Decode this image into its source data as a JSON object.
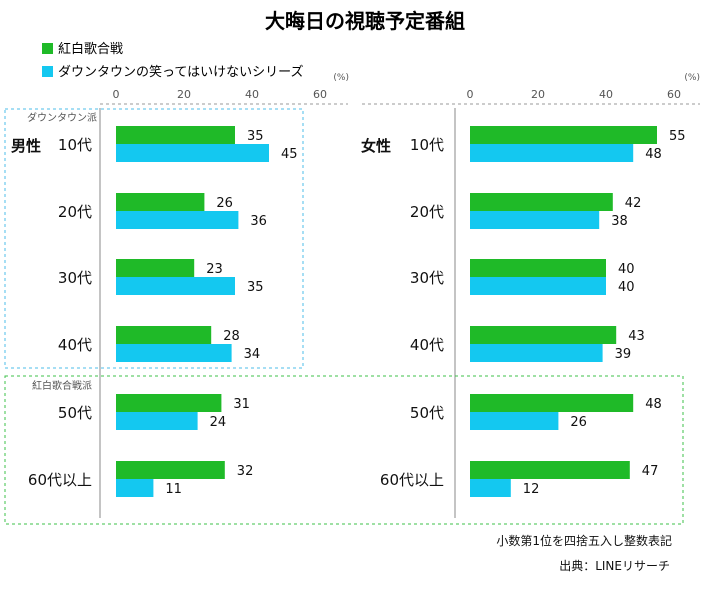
{
  "title": "大晦日の視聴予定番組",
  "colors": {
    "kohaku": "#1fba28",
    "downtown": "#14c8f0",
    "box_blue": "#4cbde8",
    "box_green": "#3ec14a"
  },
  "footnote": "小数第1位を四捨五入し整数表記",
  "source": "出典：LINEリサーチ",
  "chart_data": [
    {
      "type": "bar",
      "orientation": "horizontal",
      "panel_label": "男性",
      "unit": "(%)",
      "xlim": [
        0,
        60
      ],
      "ticks": [
        0,
        20,
        40,
        60
      ],
      "categories": [
        "10代",
        "20代",
        "30代",
        "40代",
        "50代",
        "60代以上"
      ],
      "series": [
        {
          "name": "紅白歌合戦",
          "values": [
            35,
            26,
            23,
            28,
            31,
            32
          ]
        },
        {
          "name": "ダウンタウンの笑ってはいけないシリーズ",
          "values": [
            45,
            36,
            35,
            34,
            24,
            11
          ]
        }
      ]
    },
    {
      "type": "bar",
      "orientation": "horizontal",
      "panel_label": "女性",
      "unit": "(%)",
      "xlim": [
        0,
        60
      ],
      "ticks": [
        0,
        20,
        40,
        60
      ],
      "categories": [
        "10代",
        "20代",
        "30代",
        "40代",
        "50代",
        "60代以上"
      ],
      "series": [
        {
          "name": "紅白歌合戦",
          "values": [
            55,
            42,
            40,
            43,
            48,
            47
          ]
        },
        {
          "name": "ダウンタウンの笑ってはいけないシリーズ",
          "values": [
            48,
            38,
            40,
            39,
            26,
            12
          ]
        }
      ]
    }
  ],
  "groups": [
    {
      "label": "ダウンタウン派",
      "categories": [
        "10代",
        "20代",
        "30代",
        "40代"
      ]
    },
    {
      "label": "紅白歌合戦派",
      "categories": [
        "50代",
        "60代以上"
      ]
    }
  ]
}
